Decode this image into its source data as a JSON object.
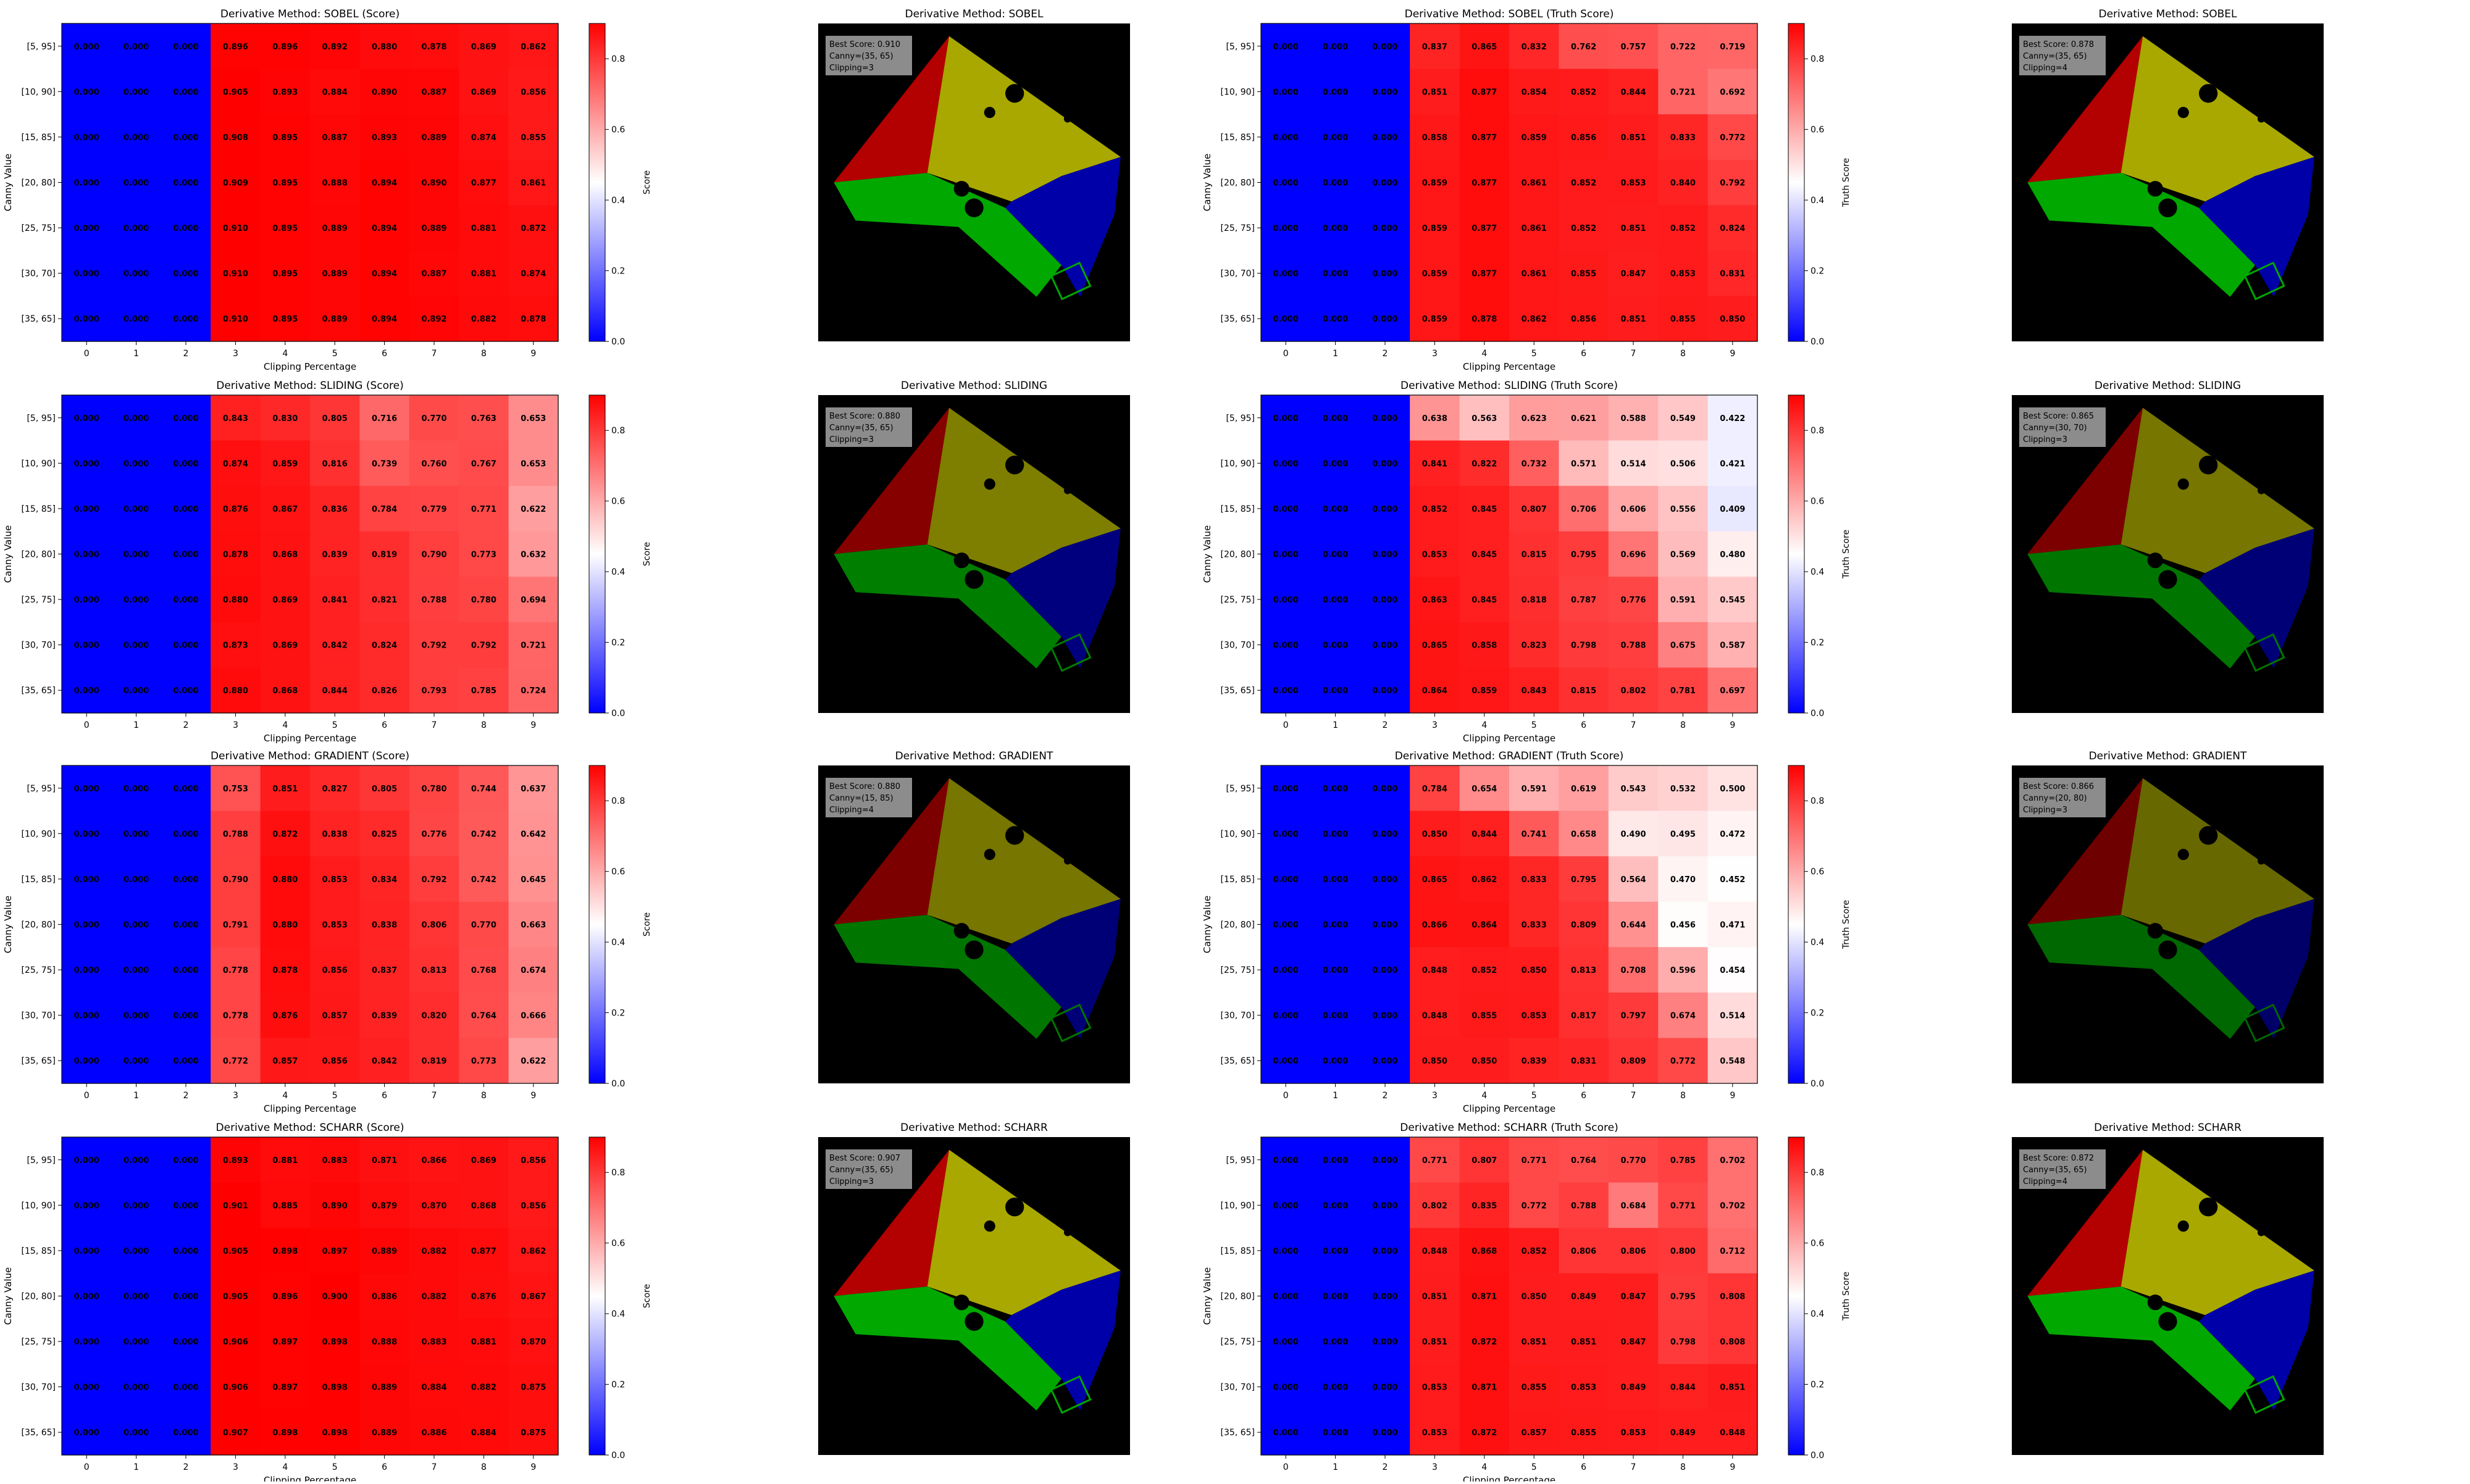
{
  "figure": {
    "canny_values": [
      "[5, 95]",
      "[10, 90]",
      "[15, 85]",
      "[20, 80]",
      "[25, 75]",
      "[30, 70]",
      "[35, 65]"
    ],
    "clipping_values": [
      "0",
      "1",
      "2",
      "3",
      "4",
      "5",
      "6",
      "7",
      "8",
      "9"
    ],
    "xlabel": "Clipping Percentage",
    "ylabel": "Canny Value",
    "colorbar_ticks": [
      "0.0",
      "0.2",
      "0.4",
      "0.6",
      "0.8"
    ],
    "colorbar_range": [
      0.0,
      0.9
    ],
    "colormap": [
      "#0000ff",
      "#ffffff",
      "#ff0000"
    ],
    "segment_colors": {
      "red": "#b30000",
      "yellow": "#a8a800",
      "green": "#00a800",
      "blue": "#0000a8",
      "background": "#000000"
    }
  },
  "chart_data": [
    {
      "type": "heatmap",
      "title": "Derivative Method: SOBEL (Score)",
      "colorbar_label": "Score",
      "values": [
        [
          0,
          0,
          0,
          0.896,
          0.896,
          0.892,
          0.88,
          0.878,
          0.869,
          0.862
        ],
        [
          0,
          0,
          0,
          0.905,
          0.893,
          0.884,
          0.89,
          0.887,
          0.869,
          0.856
        ],
        [
          0,
          0,
          0,
          0.908,
          0.895,
          0.887,
          0.893,
          0.889,
          0.874,
          0.855
        ],
        [
          0,
          0,
          0,
          0.909,
          0.895,
          0.888,
          0.894,
          0.89,
          0.877,
          0.861
        ],
        [
          0,
          0,
          0,
          0.91,
          0.895,
          0.889,
          0.894,
          0.889,
          0.881,
          0.872
        ],
        [
          0,
          0,
          0,
          0.91,
          0.895,
          0.889,
          0.894,
          0.887,
          0.881,
          0.874
        ],
        [
          0,
          0,
          0,
          0.91,
          0.895,
          0.889,
          0.894,
          0.892,
          0.882,
          0.878
        ]
      ]
    },
    {
      "type": "image",
      "title": "Derivative Method: SOBEL",
      "info": [
        "Best Score: 0.910",
        "Canny=(35, 65)",
        "Clipping=3"
      ],
      "brightness": 1.0
    },
    {
      "type": "heatmap",
      "title": "Derivative Method: SOBEL (Truth Score)",
      "colorbar_label": "Truth Score",
      "values": [
        [
          0,
          0,
          0,
          0.837,
          0.865,
          0.832,
          0.762,
          0.757,
          0.722,
          0.719
        ],
        [
          0,
          0,
          0,
          0.851,
          0.877,
          0.854,
          0.852,
          0.844,
          0.721,
          0.692
        ],
        [
          0,
          0,
          0,
          0.858,
          0.877,
          0.859,
          0.856,
          0.851,
          0.833,
          0.772
        ],
        [
          0,
          0,
          0,
          0.859,
          0.877,
          0.861,
          0.852,
          0.853,
          0.84,
          0.792
        ],
        [
          0,
          0,
          0,
          0.859,
          0.877,
          0.861,
          0.852,
          0.851,
          0.852,
          0.824
        ],
        [
          0,
          0,
          0,
          0.859,
          0.877,
          0.861,
          0.855,
          0.847,
          0.853,
          0.831
        ],
        [
          0,
          0,
          0,
          0.859,
          0.878,
          0.862,
          0.856,
          0.851,
          0.855,
          0.85
        ]
      ]
    },
    {
      "type": "image",
      "title": "Derivative Method: SOBEL",
      "info": [
        "Best Score: 0.878",
        "Canny=(35, 65)",
        "Clipping=4"
      ],
      "brightness": 1.0
    },
    {
      "type": "heatmap",
      "title": "Derivative Method: SLIDING (Score)",
      "colorbar_label": "Score",
      "values": [
        [
          0,
          0,
          0,
          0.843,
          0.83,
          0.805,
          0.716,
          0.77,
          0.763,
          0.653
        ],
        [
          0,
          0,
          0,
          0.874,
          0.859,
          0.816,
          0.739,
          0.76,
          0.767,
          0.653
        ],
        [
          0,
          0,
          0,
          0.876,
          0.867,
          0.836,
          0.784,
          0.779,
          0.771,
          0.622
        ],
        [
          0,
          0,
          0,
          0.878,
          0.868,
          0.839,
          0.819,
          0.79,
          0.773,
          0.632
        ],
        [
          0,
          0,
          0,
          0.88,
          0.869,
          0.841,
          0.821,
          0.788,
          0.78,
          0.694
        ],
        [
          0,
          0,
          0,
          0.873,
          0.869,
          0.842,
          0.824,
          0.792,
          0.792,
          0.721
        ],
        [
          0,
          0,
          0,
          0.88,
          0.868,
          0.844,
          0.826,
          0.793,
          0.785,
          0.724
        ]
      ]
    },
    {
      "type": "image",
      "title": "Derivative Method: SLIDING",
      "info": [
        "Best Score: 0.880",
        "Canny=(35, 65)",
        "Clipping=3"
      ],
      "brightness": 0.75
    },
    {
      "type": "heatmap",
      "title": "Derivative Method: SLIDING (Truth Score)",
      "colorbar_label": "Truth Score",
      "values": [
        [
          0,
          0,
          0,
          0.638,
          0.563,
          0.623,
          0.621,
          0.588,
          0.549,
          0.422
        ],
        [
          0,
          0,
          0,
          0.841,
          0.822,
          0.732,
          0.571,
          0.514,
          0.506,
          0.421
        ],
        [
          0,
          0,
          0,
          0.852,
          0.845,
          0.807,
          0.706,
          0.606,
          0.556,
          0.409
        ],
        [
          0,
          0,
          0,
          0.853,
          0.845,
          0.815,
          0.795,
          0.696,
          0.569,
          0.48
        ],
        [
          0,
          0,
          0,
          0.863,
          0.845,
          0.818,
          0.787,
          0.776,
          0.591,
          0.545
        ],
        [
          0,
          0,
          0,
          0.865,
          0.858,
          0.823,
          0.798,
          0.788,
          0.675,
          0.587
        ],
        [
          0,
          0,
          0,
          0.864,
          0.859,
          0.843,
          0.815,
          0.802,
          0.781,
          0.697
        ]
      ]
    },
    {
      "type": "image",
      "title": "Derivative Method: SLIDING",
      "info": [
        "Best Score: 0.865",
        "Canny=(30, 70)",
        "Clipping=3"
      ],
      "brightness": 0.7
    },
    {
      "type": "heatmap",
      "title": "Derivative Method: GRADIENT (Score)",
      "colorbar_label": "Score",
      "values": [
        [
          0,
          0,
          0,
          0.753,
          0.851,
          0.827,
          0.805,
          0.78,
          0.744,
          0.637
        ],
        [
          0,
          0,
          0,
          0.788,
          0.872,
          0.838,
          0.825,
          0.776,
          0.742,
          0.642
        ],
        [
          0,
          0,
          0,
          0.79,
          0.88,
          0.853,
          0.834,
          0.792,
          0.742,
          0.645
        ],
        [
          0,
          0,
          0,
          0.791,
          0.88,
          0.853,
          0.838,
          0.806,
          0.77,
          0.663
        ],
        [
          0,
          0,
          0,
          0.778,
          0.878,
          0.856,
          0.837,
          0.813,
          0.768,
          0.674
        ],
        [
          0,
          0,
          0,
          0.778,
          0.876,
          0.857,
          0.839,
          0.82,
          0.764,
          0.666
        ],
        [
          0,
          0,
          0,
          0.772,
          0.857,
          0.856,
          0.842,
          0.819,
          0.773,
          0.622
        ]
      ]
    },
    {
      "type": "image",
      "title": "Derivative Method: GRADIENT",
      "info": [
        "Best Score: 0.880",
        "Canny=(15, 85)",
        "Clipping=4"
      ],
      "brightness": 0.7
    },
    {
      "type": "heatmap",
      "title": "Derivative Method: GRADIENT (Truth Score)",
      "colorbar_label": "Truth Score",
      "values": [
        [
          0,
          0,
          0,
          0.784,
          0.654,
          0.591,
          0.619,
          0.543,
          0.532,
          0.5
        ],
        [
          0,
          0,
          0,
          0.85,
          0.844,
          0.741,
          0.658,
          0.49,
          0.495,
          0.472
        ],
        [
          0,
          0,
          0,
          0.865,
          0.862,
          0.833,
          0.795,
          0.564,
          0.47,
          0.452
        ],
        [
          0,
          0,
          0,
          0.866,
          0.864,
          0.833,
          0.809,
          0.644,
          0.456,
          0.471
        ],
        [
          0,
          0,
          0,
          0.848,
          0.852,
          0.85,
          0.813,
          0.708,
          0.596,
          0.454
        ],
        [
          0,
          0,
          0,
          0.848,
          0.855,
          0.853,
          0.817,
          0.797,
          0.674,
          0.514
        ],
        [
          0,
          0,
          0,
          0.85,
          0.85,
          0.839,
          0.831,
          0.809,
          0.772,
          0.548
        ]
      ]
    },
    {
      "type": "image",
      "title": "Derivative Method: GRADIENT",
      "info": [
        "Best Score: 0.866",
        "Canny=(20, 80)",
        "Clipping=3"
      ],
      "brightness": 0.62
    },
    {
      "type": "heatmap",
      "title": "Derivative Method: SCHARR (Score)",
      "colorbar_label": "Score",
      "values": [
        [
          0,
          0,
          0,
          0.893,
          0.881,
          0.883,
          0.871,
          0.866,
          0.869,
          0.856
        ],
        [
          0,
          0,
          0,
          0.901,
          0.885,
          0.89,
          0.879,
          0.87,
          0.868,
          0.856
        ],
        [
          0,
          0,
          0,
          0.905,
          0.898,
          0.897,
          0.889,
          0.882,
          0.877,
          0.862
        ],
        [
          0,
          0,
          0,
          0.905,
          0.896,
          0.9,
          0.886,
          0.882,
          0.876,
          0.867
        ],
        [
          0,
          0,
          0,
          0.906,
          0.897,
          0.898,
          0.888,
          0.883,
          0.881,
          0.87
        ],
        [
          0,
          0,
          0,
          0.906,
          0.897,
          0.898,
          0.889,
          0.884,
          0.882,
          0.875
        ],
        [
          0,
          0,
          0,
          0.907,
          0.898,
          0.898,
          0.889,
          0.886,
          0.884,
          0.875
        ]
      ]
    },
    {
      "type": "image",
      "title": "Derivative Method: SCHARR",
      "info": [
        "Best Score: 0.907",
        "Canny=(35, 65)",
        "Clipping=3"
      ],
      "brightness": 1.0
    },
    {
      "type": "heatmap",
      "title": "Derivative Method: SCHARR (Truth Score)",
      "colorbar_label": "Truth Score",
      "values": [
        [
          0,
          0,
          0,
          0.771,
          0.807,
          0.771,
          0.764,
          0.77,
          0.785,
          0.702
        ],
        [
          0,
          0,
          0,
          0.802,
          0.835,
          0.772,
          0.788,
          0.684,
          0.771,
          0.702
        ],
        [
          0,
          0,
          0,
          0.848,
          0.868,
          0.852,
          0.806,
          0.806,
          0.8,
          0.712
        ],
        [
          0,
          0,
          0,
          0.851,
          0.871,
          0.85,
          0.849,
          0.847,
          0.795,
          0.808
        ],
        [
          0,
          0,
          0,
          0.851,
          0.872,
          0.851,
          0.851,
          0.847,
          0.798,
          0.808
        ],
        [
          0,
          0,
          0,
          0.853,
          0.871,
          0.855,
          0.853,
          0.849,
          0.844,
          0.851
        ],
        [
          0,
          0,
          0,
          0.853,
          0.872,
          0.857,
          0.855,
          0.853,
          0.849,
          0.848
        ]
      ]
    },
    {
      "type": "image",
      "title": "Derivative Method: SCHARR",
      "info": [
        "Best Score: 0.872",
        "Canny=(35, 65)",
        "Clipping=4"
      ],
      "brightness": 1.0
    }
  ]
}
